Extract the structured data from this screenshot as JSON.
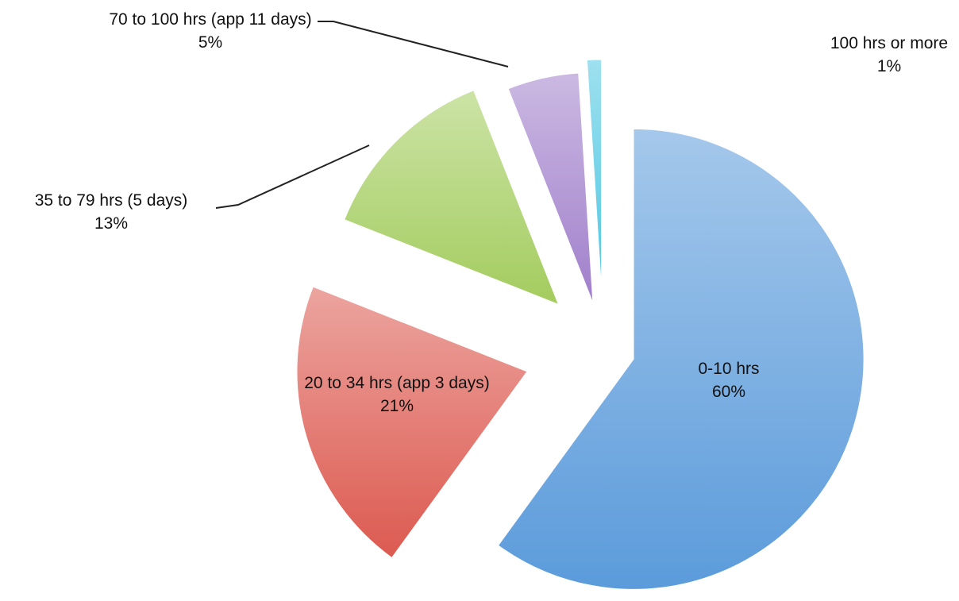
{
  "chart_data": {
    "type": "pie",
    "categories": [
      "0-10 hrs",
      "20 to 34 hrs (app 3 days)",
      "35 to 79 hrs (5 days)",
      "70 to 100 hrs (app 11 days)",
      "100 hrs or more"
    ],
    "values": [
      60,
      21,
      13,
      5,
      1
    ],
    "value_labels": [
      "60%",
      "21%",
      "13%",
      "5%",
      "1%"
    ],
    "colors": [
      "#5b9bdb",
      "#dc5a50",
      "#a3cc5e",
      "#a07fcb",
      "#4fc7e2"
    ]
  }
}
